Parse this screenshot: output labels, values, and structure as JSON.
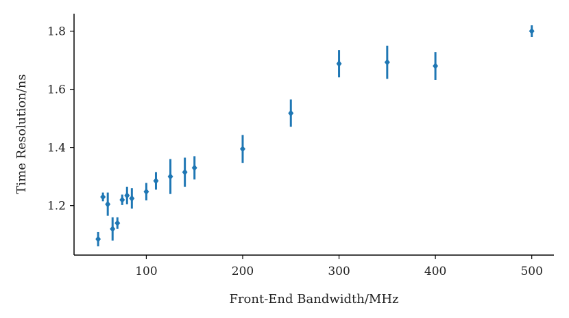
{
  "chart_data": {
    "type": "scatter",
    "title": "",
    "xlabel": "Front-End Bandwidth/MHz",
    "ylabel": "Time Resolution/ns",
    "xlim": [
      25,
      523
    ],
    "ylim": [
      1.03,
      1.86
    ],
    "xticks": [
      100,
      200,
      300,
      400,
      500
    ],
    "xtick_labels": [
      "100",
      "200",
      "300",
      "400",
      "500"
    ],
    "yticks": [
      1.2,
      1.4,
      1.6,
      1.8
    ],
    "ytick_labels": [
      "1.2",
      "1.4",
      "1.6",
      "1.8"
    ],
    "grid": false,
    "legend": "none",
    "color": "#1f77b4",
    "series": [
      {
        "points": [
          {
            "x": 50,
            "y": 1.085,
            "err": 0.025
          },
          {
            "x": 55,
            "y": 1.23,
            "err": 0.015
          },
          {
            "x": 60,
            "y": 1.205,
            "err": 0.04
          },
          {
            "x": 65,
            "y": 1.12,
            "err": 0.04
          },
          {
            "x": 70,
            "y": 1.14,
            "err": 0.02
          },
          {
            "x": 75,
            "y": 1.22,
            "err": 0.018
          },
          {
            "x": 80,
            "y": 1.235,
            "err": 0.03
          },
          {
            "x": 85,
            "y": 1.225,
            "err": 0.035
          },
          {
            "x": 100,
            "y": 1.248,
            "err": 0.03
          },
          {
            "x": 110,
            "y": 1.285,
            "err": 0.03
          },
          {
            "x": 125,
            "y": 1.3,
            "err": 0.06
          },
          {
            "x": 140,
            "y": 1.315,
            "err": 0.05
          },
          {
            "x": 150,
            "y": 1.33,
            "err": 0.04
          },
          {
            "x": 200,
            "y": 1.395,
            "err": 0.048
          },
          {
            "x": 250,
            "y": 1.518,
            "err": 0.047
          },
          {
            "x": 300,
            "y": 1.688,
            "err": 0.047
          },
          {
            "x": 350,
            "y": 1.693,
            "err": 0.057
          },
          {
            "x": 400,
            "y": 1.68,
            "err": 0.048
          },
          {
            "x": 500,
            "y": 1.8,
            "err": 0.02
          }
        ]
      }
    ]
  }
}
